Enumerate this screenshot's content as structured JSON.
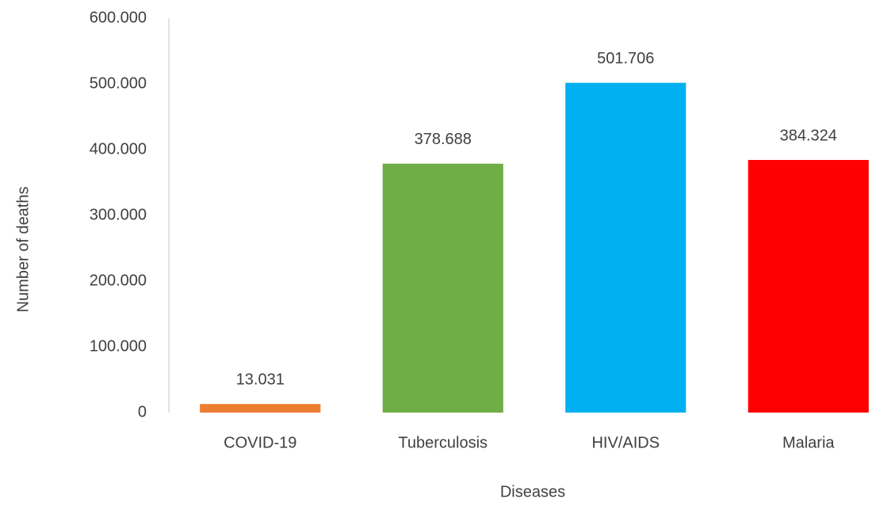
{
  "chart_data": {
    "type": "bar",
    "x_label": "Diseases",
    "y_label": "Number of deaths",
    "categories": [
      "COVID-19",
      "Tuberculosis",
      "HIV/AIDS",
      "Malaria"
    ],
    "values": [
      13031,
      378688,
      501706,
      384324
    ],
    "value_labels": [
      "13.031",
      "378.688",
      "501.706",
      "384.324"
    ],
    "colors": [
      "#ed7d31",
      "#70ad47",
      "#00b0f0",
      "#ff0000"
    ],
    "ylim": [
      0,
      600000
    ],
    "yticks": [
      0,
      {
        "value": 100000,
        "label": "100.000"
      },
      {
        "value": 200000,
        "label": "200.000"
      },
      {
        "value": 300000,
        "label": "300.000"
      },
      {
        "value": 400000,
        "label": "400.000"
      },
      {
        "value": 500000,
        "label": "500.000"
      },
      {
        "value": 600000,
        "label": "600.000"
      }
    ],
    "grid": false
  }
}
